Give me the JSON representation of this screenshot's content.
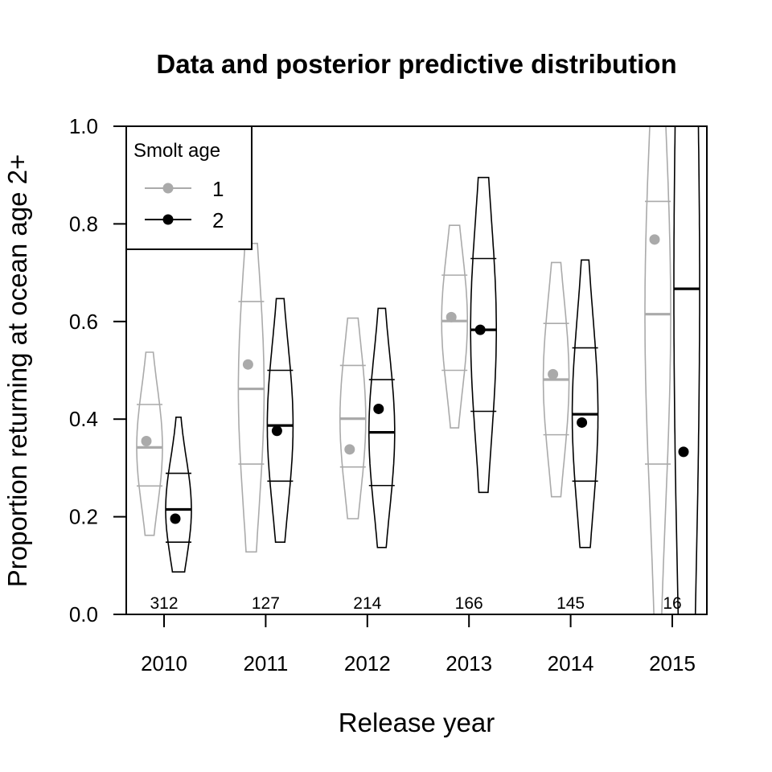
{
  "chart_data": {
    "type": "violin",
    "title": "Data and posterior predictive distribution",
    "xlabel": "Release year",
    "ylabel": "Proportion returning at ocean age 2+",
    "categories": [
      "2010",
      "2011",
      "2012",
      "2013",
      "2014",
      "2015"
    ],
    "sample_sizes": [
      "312",
      "127",
      "214",
      "166",
      "145",
      "16"
    ],
    "ylim": [
      0,
      1
    ],
    "yticks": [
      "0.0",
      "0.2",
      "0.4",
      "0.6",
      "0.8",
      "1.0"
    ],
    "legend": {
      "title": "Smolt age",
      "position": "top-left",
      "entries": [
        {
          "label": "1",
          "color": "#aaaaaa"
        },
        {
          "label": "2",
          "color": "#000000"
        }
      ]
    },
    "series": [
      {
        "name": "1",
        "color": "#aaaaaa",
        "observed": [
          0.355,
          0.512,
          0.338,
          0.609,
          0.492,
          0.768
        ],
        "median": [
          0.342,
          0.462,
          0.401,
          0.601,
          0.481,
          0.615
        ],
        "q_low": [
          0.263,
          0.308,
          0.302,
          0.5,
          0.368,
          0.308
        ],
        "q_high": [
          0.43,
          0.641,
          0.51,
          0.695,
          0.596,
          0.846
        ],
        "min": [
          0.162,
          0.128,
          0.196,
          0.382,
          0.241,
          0.0
        ],
        "max": [
          0.537,
          0.76,
          0.607,
          0.797,
          0.721,
          1.0
        ]
      },
      {
        "name": "2",
        "color": "#000000",
        "observed": [
          0.196,
          0.376,
          0.421,
          0.583,
          0.393,
          0.333
        ],
        "median": [
          0.215,
          0.387,
          0.373,
          0.583,
          0.41,
          0.667
        ],
        "q_low": [
          0.148,
          0.273,
          0.264,
          0.416,
          0.273,
          0.0
        ],
        "q_high": [
          0.289,
          0.5,
          0.481,
          0.729,
          0.546,
          1.0
        ],
        "min": [
          0.087,
          0.148,
          0.137,
          0.25,
          0.137,
          0.0
        ],
        "max": [
          0.404,
          0.647,
          0.627,
          0.895,
          0.726,
          1.0
        ]
      }
    ]
  }
}
